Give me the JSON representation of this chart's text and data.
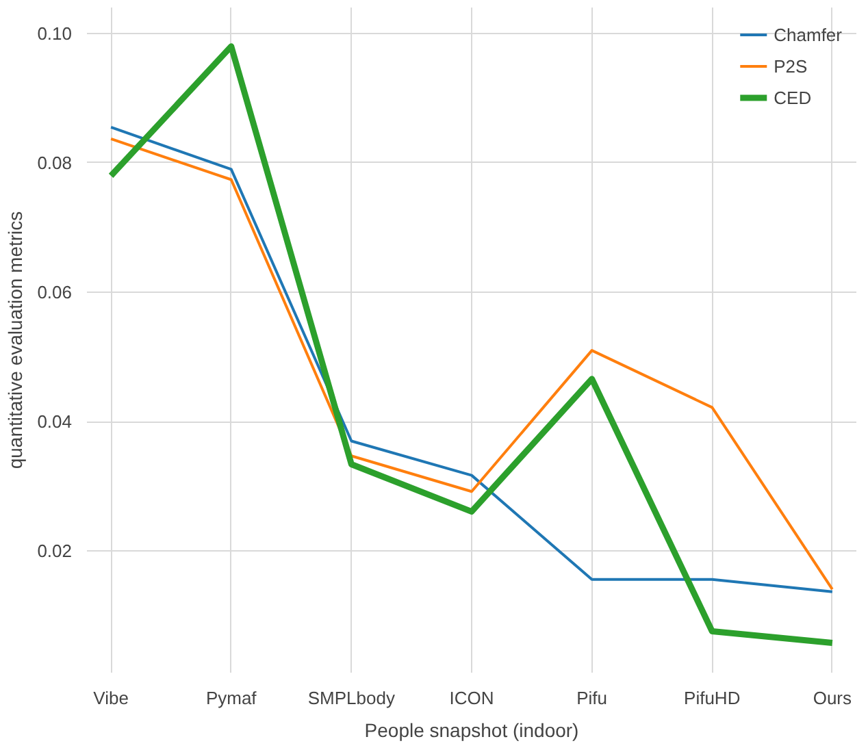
{
  "chart_data": {
    "type": "line",
    "xlabel": "People snapshot (indoor)",
    "ylabel": "quantitative evaluation metrics",
    "categories": [
      "Vibe",
      "Pymaf",
      "SMPLbody",
      "ICON",
      "Pifu",
      "PifuHD",
      "Ours"
    ],
    "series": [
      {
        "name": "Chamfer",
        "color": "#1f77b4",
        "values": [
          0.0855,
          0.079,
          0.037,
          0.0317,
          0.0156,
          0.0156,
          0.0137
        ]
      },
      {
        "name": "P2S",
        "color": "#ff7f0e",
        "values": [
          0.0837,
          0.0774,
          0.0347,
          0.0292,
          0.051,
          0.0422,
          0.0141
        ]
      },
      {
        "name": "CED",
        "color": "#2ca02c",
        "values": [
          0.078,
          0.098,
          0.0334,
          0.0261,
          0.0466,
          0.0076,
          0.0058
        ]
      }
    ],
    "ylim": [
      0.0012,
      0.104
    ],
    "yticks": [
      {
        "value": 0.02,
        "label": "0.02"
      },
      {
        "value": 0.04,
        "label": "0.04"
      },
      {
        "value": 0.06,
        "label": "0.06"
      },
      {
        "value": 0.08,
        "label": "0.08"
      },
      {
        "value": 0.1,
        "label": "0.10"
      }
    ],
    "grid": true,
    "legend": "top right",
    "line_style": "solid"
  }
}
